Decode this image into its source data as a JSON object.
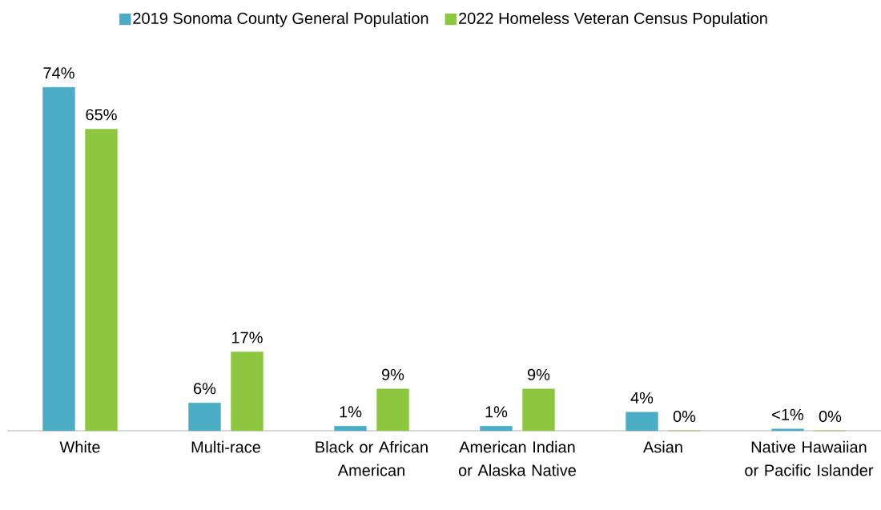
{
  "chart_data": {
    "type": "bar",
    "categories": [
      "White",
      "Multi-race",
      "Black or African American",
      "American Indian or Alaska Native",
      "Asian",
      "Native Hawaiian or Pacific Islander"
    ],
    "series": [
      {
        "name": "2019 Sonoma County General Population",
        "color": "#4bacc6",
        "values": [
          74,
          6,
          1,
          1,
          4,
          0.4
        ],
        "value_labels": [
          "74%",
          "6%",
          "1%",
          "1%",
          "4%",
          "<1%"
        ]
      },
      {
        "name": "2022 Homeless Veteran Census Population",
        "color": "#8dc63f",
        "values": [
          65,
          17,
          9,
          9,
          0,
          0
        ],
        "value_labels": [
          "65%",
          "17%",
          "9%",
          "9%",
          "0%",
          "0%"
        ]
      }
    ],
    "legend": "top"
  }
}
